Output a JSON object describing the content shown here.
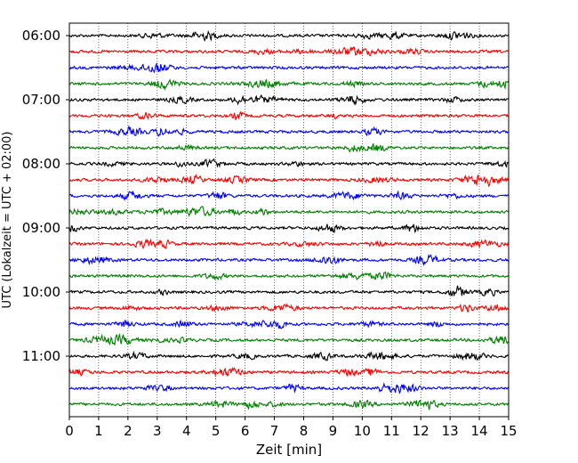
{
  "chart_data": {
    "type": "line",
    "title": "",
    "xlabel": "Zeit  [min]",
    "ylabel": "UTC (Lokalzeit = UTC + 02:00)",
    "xlim": [
      0,
      15
    ],
    "x_ticks": [
      "0",
      "1",
      "2",
      "3",
      "4",
      "5",
      "6",
      "7",
      "8",
      "9",
      "10",
      "11",
      "12",
      "13",
      "14",
      "15"
    ],
    "y_tick_labels": [
      "06:00",
      "07:00",
      "08:00",
      "09:00",
      "10:00",
      "11:00"
    ],
    "grid": "vertical dotted lines at each minute",
    "trace_colors": [
      "#000000",
      "#ff0000",
      "#0000ff",
      "#008000"
    ],
    "traces": [
      {
        "start": "06:00"
      },
      {
        "start": "06:15"
      },
      {
        "start": "06:30"
      },
      {
        "start": "06:45"
      },
      {
        "start": "07:00"
      },
      {
        "start": "07:15"
      },
      {
        "start": "07:30"
      },
      {
        "start": "07:45"
      },
      {
        "start": "08:00"
      },
      {
        "start": "08:15"
      },
      {
        "start": "08:30"
      },
      {
        "start": "08:45"
      },
      {
        "start": "09:00"
      },
      {
        "start": "09:15"
      },
      {
        "start": "09:30"
      },
      {
        "start": "09:45"
      },
      {
        "start": "10:00"
      },
      {
        "start": "10:15"
      },
      {
        "start": "10:30"
      },
      {
        "start": "10:45"
      },
      {
        "start": "11:00"
      },
      {
        "start": "11:15"
      },
      {
        "start": "11:30"
      },
      {
        "start": "11:45"
      }
    ]
  }
}
